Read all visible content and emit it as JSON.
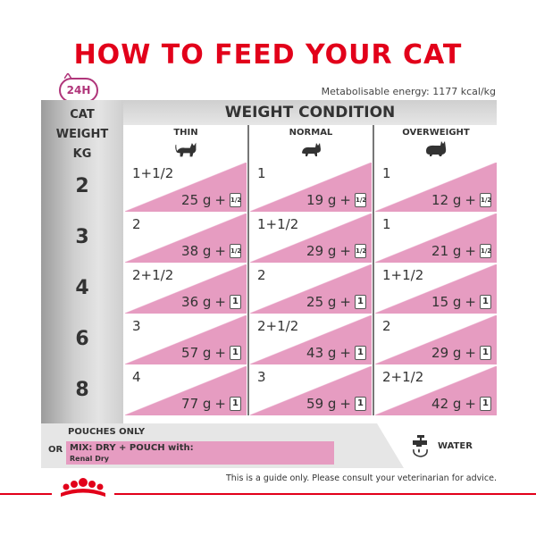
{
  "title": "HOW TO FEED YOUR CAT",
  "badge": "24H",
  "energy": "Metabolisable energy: 1177 kcal/kg",
  "weight_header": [
    "CAT",
    "WEIGHT",
    "KG"
  ],
  "condition_header": "WEIGHT CONDITION",
  "columns": [
    "THIN",
    "NORMAL",
    "OVERWEIGHT"
  ],
  "rows": [
    {
      "kg": "2",
      "cells": [
        {
          "pouches": "1+1/2",
          "dry": "25 g",
          "plus": "+",
          "icon": "1/2"
        },
        {
          "pouches": "1",
          "dry": "19 g",
          "plus": "+",
          "icon": "1/2"
        },
        {
          "pouches": "1",
          "dry": "12 g",
          "plus": "+",
          "icon": "1/2"
        }
      ]
    },
    {
      "kg": "3",
      "cells": [
        {
          "pouches": "2",
          "dry": "38 g",
          "plus": "+",
          "icon": "1/2"
        },
        {
          "pouches": "1+1/2",
          "dry": "29 g",
          "plus": "+",
          "icon": "1/2"
        },
        {
          "pouches": "1",
          "dry": "21 g",
          "plus": "+",
          "icon": "1/2"
        }
      ]
    },
    {
      "kg": "4",
      "cells": [
        {
          "pouches": "2+1/2",
          "dry": "36 g",
          "plus": "+",
          "icon": "1"
        },
        {
          "pouches": "2",
          "dry": "25 g",
          "plus": "+",
          "icon": "1"
        },
        {
          "pouches": "1+1/2",
          "dry": "15 g",
          "plus": "+",
          "icon": "1"
        }
      ]
    },
    {
      "kg": "6",
      "cells": [
        {
          "pouches": "3",
          "dry": "57 g",
          "plus": "+",
          "icon": "1"
        },
        {
          "pouches": "2+1/2",
          "dry": "43 g",
          "plus": "+",
          "icon": "1"
        },
        {
          "pouches": "2",
          "dry": "29 g",
          "plus": "+",
          "icon": "1"
        }
      ]
    },
    {
      "kg": "8",
      "cells": [
        {
          "pouches": "4",
          "dry": "77 g",
          "plus": "+",
          "icon": "1"
        },
        {
          "pouches": "3",
          "dry": "59 g",
          "plus": "+",
          "icon": "1"
        },
        {
          "pouches": "2+1/2",
          "dry": "42 g",
          "plus": "+",
          "icon": "1"
        }
      ]
    }
  ],
  "legend": {
    "pouches_only": "POUCHES ONLY",
    "or": "OR",
    "mix": "MIX: DRY + POUCH with:",
    "renal": "Renal Dry",
    "water": "WATER"
  },
  "disclaimer": "This is a guide only. Please consult your veterinarian for advice.",
  "colors": {
    "brand_red": "#e2001a",
    "pink": "#e69cc1",
    "magenta": "#b0357a"
  },
  "icons": [
    "clock-24h-icon",
    "thin-cat-icon",
    "normal-cat-icon",
    "overweight-cat-icon",
    "pouch-icon",
    "water-tap-icon",
    "royal-canin-crown-logo"
  ]
}
